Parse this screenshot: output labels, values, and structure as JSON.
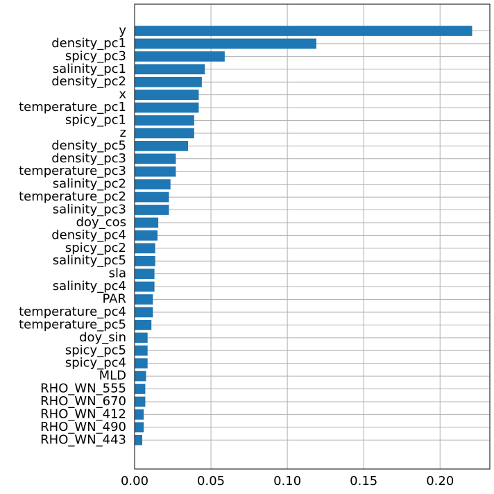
{
  "chart_data": {
    "type": "bar",
    "orientation": "horizontal",
    "title": "",
    "xlabel": "",
    "ylabel": "",
    "xlim": [
      0,
      0.2326
    ],
    "x_ticks": [
      0.0,
      0.05,
      0.1,
      0.15,
      0.2
    ],
    "x_tick_labels": [
      "0.00",
      "0.05",
      "0.10",
      "0.15",
      "0.20"
    ],
    "grid": true,
    "bar_color": "#1f77b4",
    "grid_color": "#b0b0b0",
    "categories": [
      "y",
      "density_pc1",
      "spicy_pc3",
      "salinity_pc1",
      "density_pc2",
      "x",
      "temperature_pc1",
      "spicy_pc1",
      "z",
      "density_pc5",
      "density_pc3",
      "temperature_pc3",
      "salinity_pc2",
      "temperature_pc2",
      "salinity_pc3",
      "doy_cos",
      "density_pc4",
      "spicy_pc2",
      "salinity_pc5",
      "sla",
      "salinity_pc4",
      "PAR",
      "temperature_pc4",
      "temperature_pc5",
      "doy_sin",
      "spicy_pc5",
      "spicy_pc4",
      "MLD",
      "RHO_WN_555",
      "RHO_WN_670",
      "RHO_WN_412",
      "RHO_WN_490",
      "RHO_WN_443"
    ],
    "values": [
      0.221,
      0.119,
      0.059,
      0.046,
      0.044,
      0.042,
      0.042,
      0.039,
      0.039,
      0.035,
      0.027,
      0.027,
      0.0235,
      0.0225,
      0.0225,
      0.0155,
      0.015,
      0.0135,
      0.0135,
      0.013,
      0.013,
      0.012,
      0.012,
      0.011,
      0.0085,
      0.0085,
      0.0085,
      0.0075,
      0.007,
      0.007,
      0.006,
      0.006,
      0.005
    ]
  }
}
